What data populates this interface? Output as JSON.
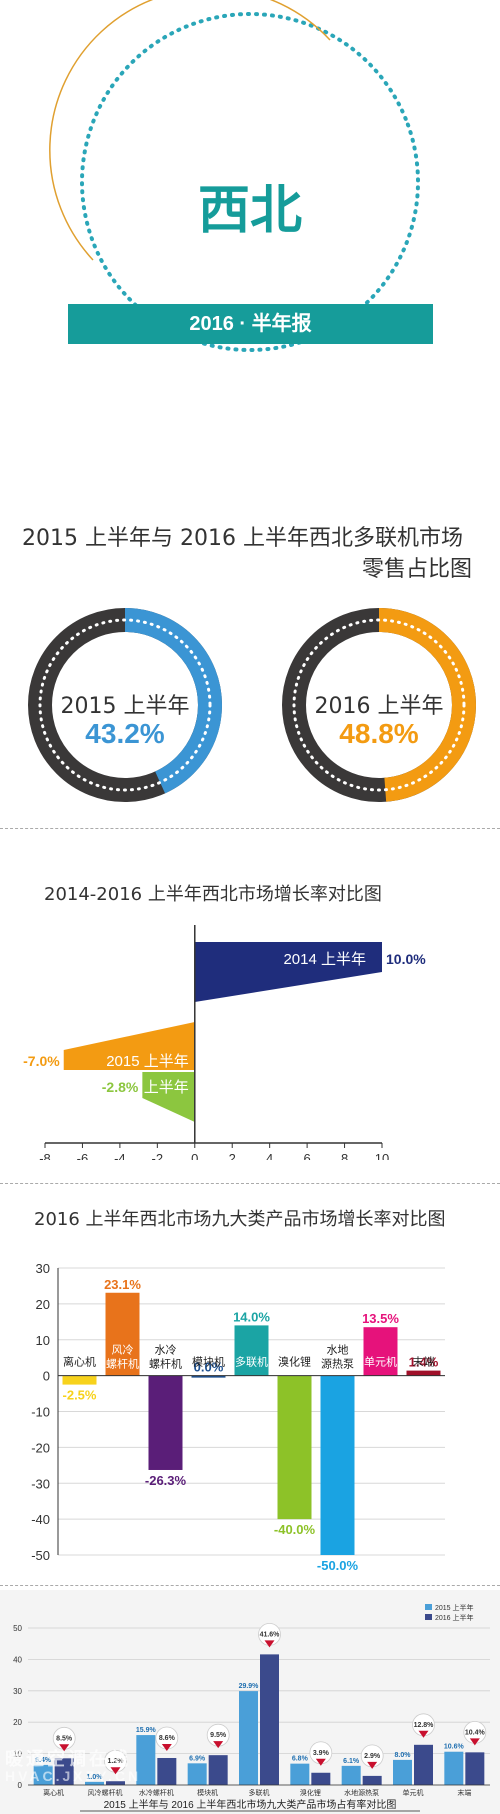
{
  "header": {
    "title": "西北",
    "band_text": "2016 · 半年报",
    "colors": {
      "teal": "#169c9a",
      "gold": "#e0a030"
    }
  },
  "share": {
    "title_line1": "2015 上半年与 2016 上半年西北多联机市场",
    "title_line2": "零售占比图",
    "donuts": [
      {
        "period": "2015 上半年",
        "value_label": "43.2%",
        "value": 43.2,
        "color": "#3b95d4"
      },
      {
        "period": "2016 上半年",
        "value_label": "48.8%",
        "value": 48.8,
        "color": "#f39b12"
      }
    ]
  },
  "chart_data": [
    {
      "type": "bar",
      "orientation": "horizontal",
      "title": "2014-2016 上半年西北市场增长率对比图",
      "categories": [
        "2014 上半年",
        "2015 上半年",
        "2016 上半年"
      ],
      "values": [
        10.0,
        -7.0,
        -2.8
      ],
      "value_labels": [
        "10.0%",
        "-7.0%",
        "-2.8%"
      ],
      "colors": [
        "#1f2d7c",
        "#f39b12",
        "#8cc63f"
      ],
      "xlim": [
        -8,
        10
      ],
      "xticks": [
        "-8",
        "-6",
        "-4",
        "-2",
        "0",
        "2",
        "4",
        "6",
        "8",
        "10"
      ]
    },
    {
      "type": "bar",
      "title": "2016 上半年西北市场九大类产品市场增长率对比图",
      "categories": [
        "离心机",
        "风冷螺杆机",
        "水冷螺杆机",
        "模块机",
        "多联机",
        "溴化锂",
        "水地源热泵",
        "单元机",
        "末端"
      ],
      "values": [
        -2.5,
        23.1,
        -26.3,
        0.0,
        14.0,
        -40.0,
        -50.0,
        13.5,
        1.4
      ],
      "value_labels": [
        "-2.5%",
        "23.1%",
        "-26.3%",
        "0.0%",
        "14.0%",
        "-40.0%",
        "-50.0%",
        "13.5%",
        "1.4%"
      ],
      "colors": [
        "#f7d21c",
        "#e8731b",
        "#5a1e78",
        "#1c4f8f",
        "#1ba4a4",
        "#8dc228",
        "#1aa3e2",
        "#e6127b",
        "#a0102a"
      ],
      "ylim": [
        -50,
        30
      ],
      "yticks": [
        "30",
        "20",
        "10",
        "0",
        "-10",
        "-20",
        "-30",
        "-40",
        "-50"
      ]
    },
    {
      "type": "bar",
      "title": "2015 上半年与 2016 上半年西北市场九大类产品市场占有率对比图",
      "categories": [
        "离心机",
        "风冷螺杆机",
        "水冷螺杆机",
        "模块机",
        "多联机",
        "溴化锂",
        "水地源热泵",
        "单元机",
        "末端"
      ],
      "series": [
        {
          "name": "2015 上半年",
          "color": "#4a9fd8",
          "values": [
            6.4,
            1.0,
            15.9,
            6.9,
            29.9,
            6.8,
            6.1,
            8.0,
            10.6
          ]
        },
        {
          "name": "2016 上半年",
          "color": "#3b4a8c",
          "values": [
            8.5,
            1.2,
            8.6,
            9.5,
            41.6,
            3.9,
            2.9,
            12.8,
            10.4
          ]
        }
      ],
      "labels_2015": [
        "6.4%",
        "1.0%",
        "15.9%",
        "6.9%",
        "29.9%",
        "6.8%",
        "6.1%",
        "8.0%",
        "10.6%"
      ],
      "labels_2016": [
        "8.5%",
        "1.2%",
        "8.6%",
        "9.5%",
        "41.6%",
        "3.9%",
        "2.9%",
        "12.8%",
        "10.4%"
      ],
      "ylim": [
        0,
        50
      ],
      "yticks": [
        "50",
        "40",
        "30",
        "20",
        "10",
        "0"
      ]
    }
  ],
  "watermark": "暖通空调在线",
  "watermark_url": "HVAC.JXZY.CN"
}
